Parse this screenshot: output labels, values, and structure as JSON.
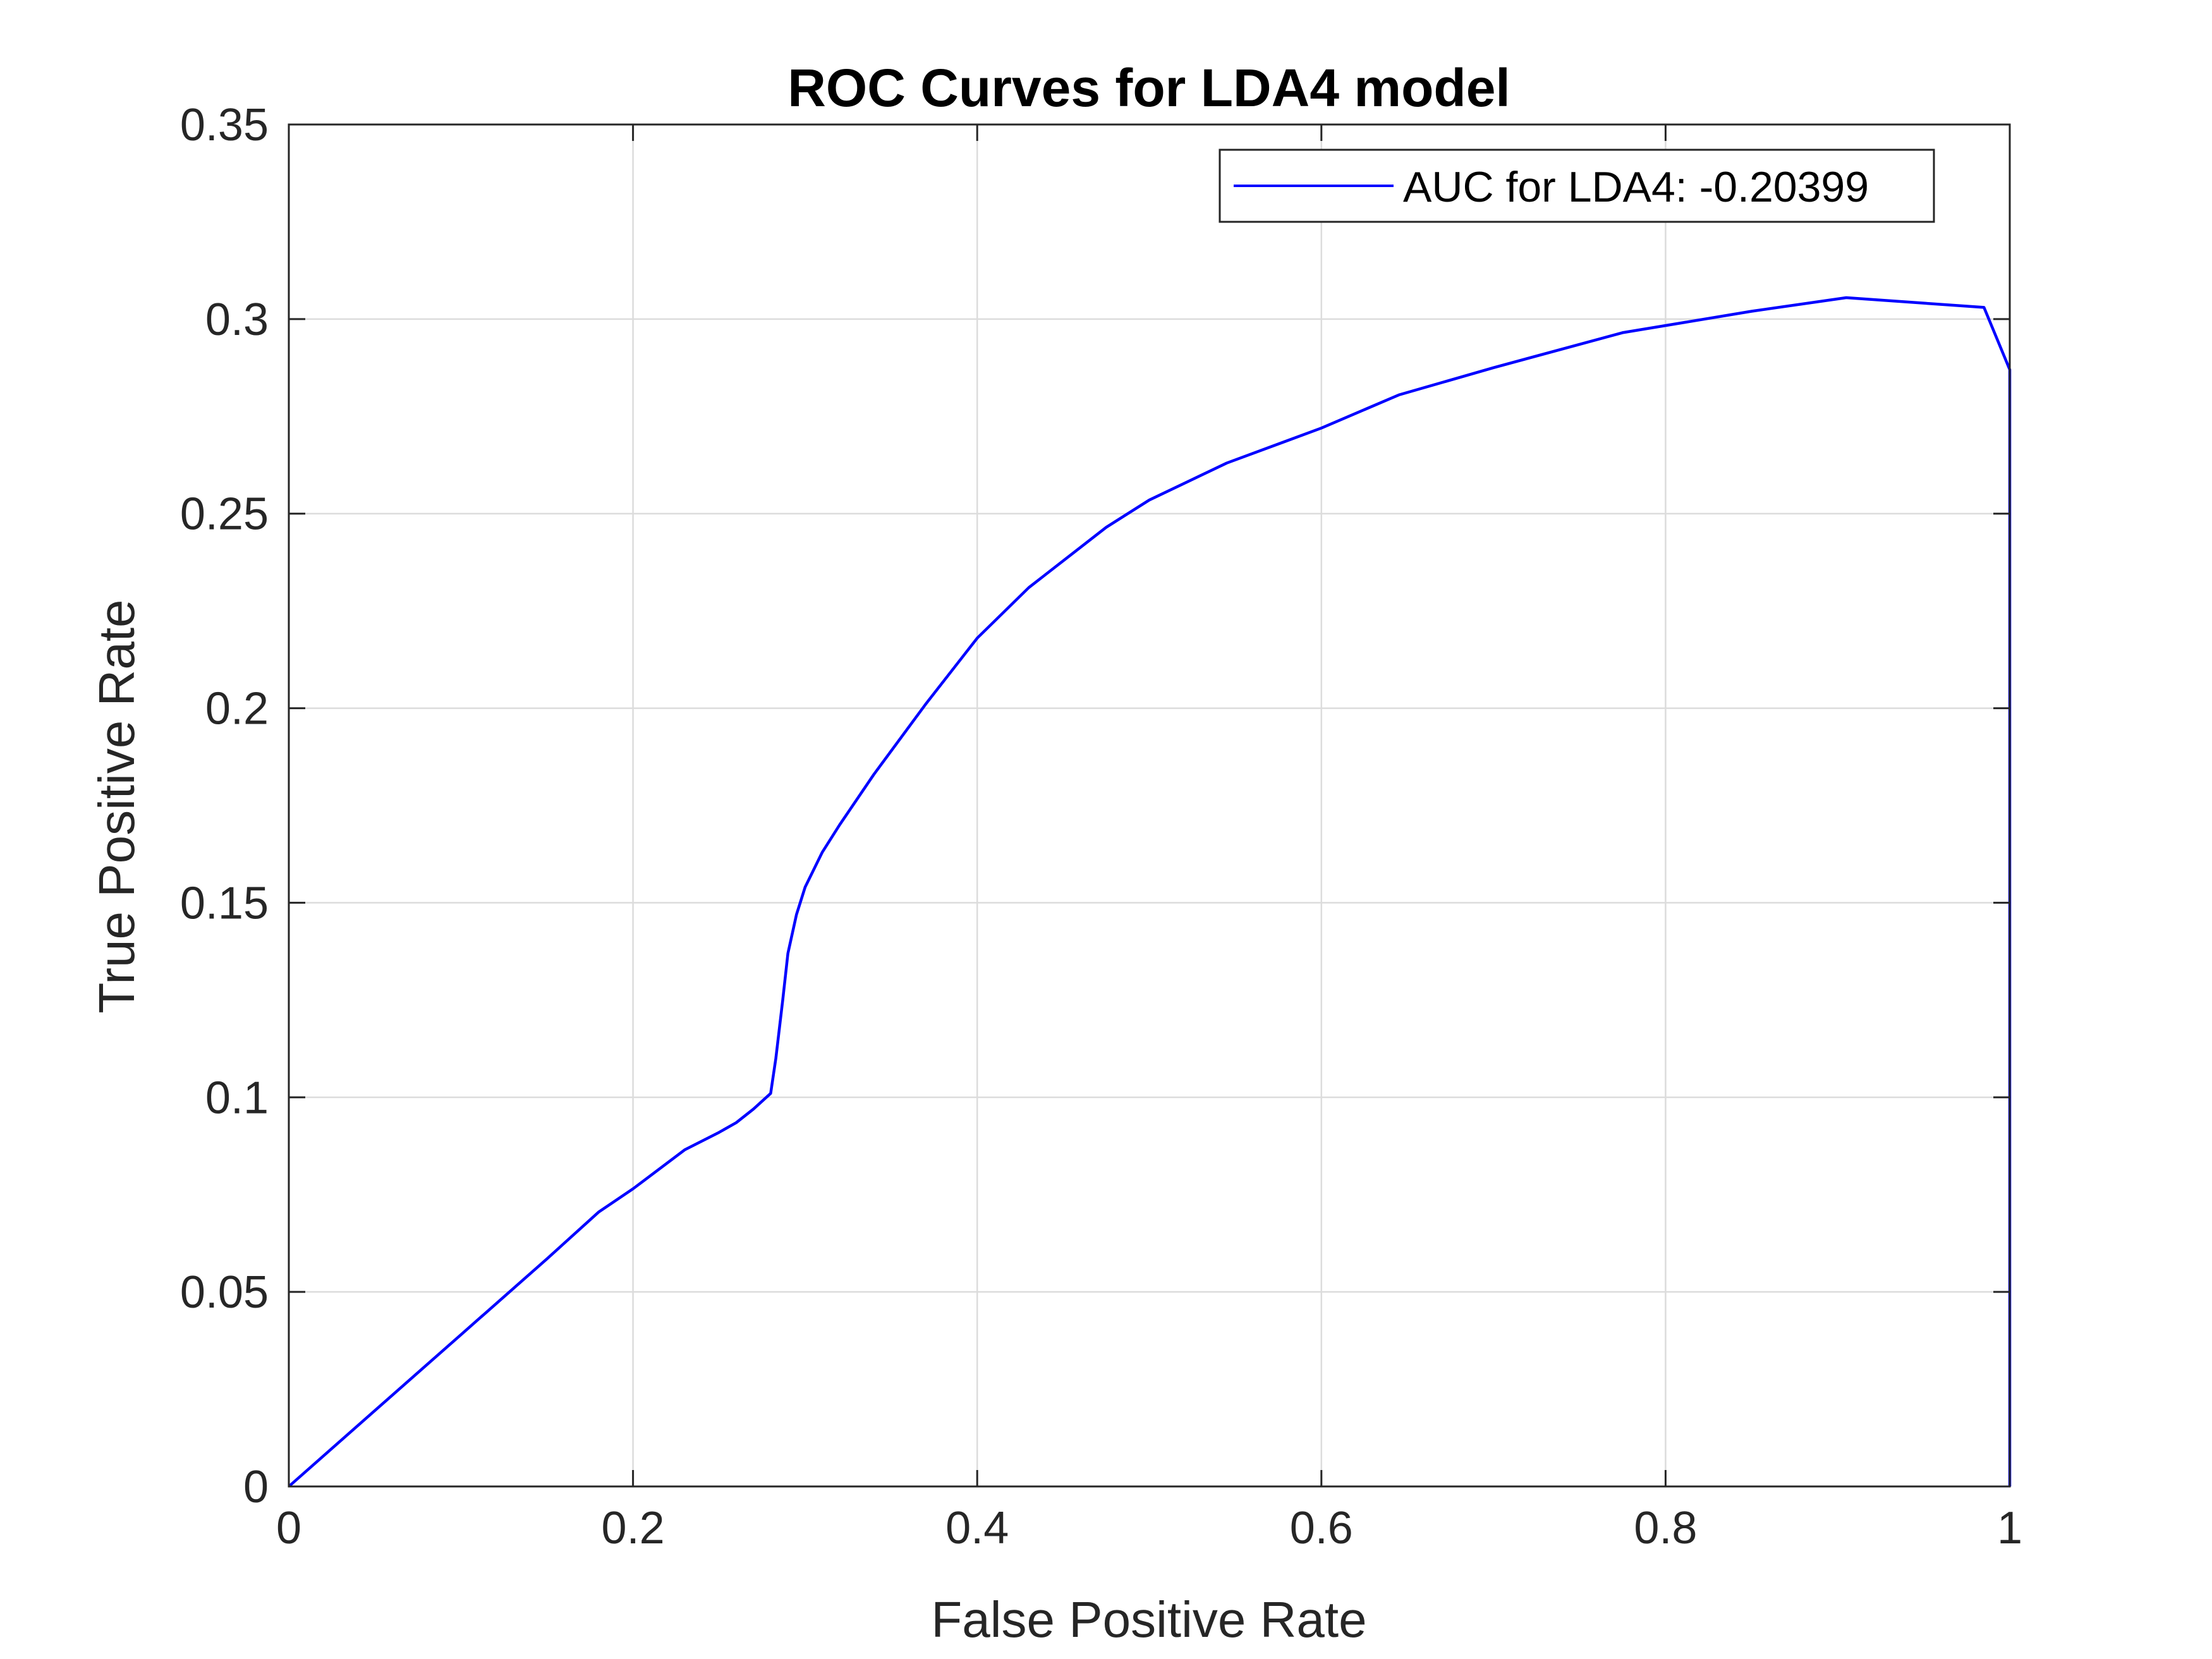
{
  "chart_data": {
    "type": "line",
    "title": "ROC Curves for LDA4 model",
    "xlabel": "False Positive Rate",
    "ylabel": "True Positive Rate",
    "xlim": [
      0,
      1
    ],
    "ylim": [
      0,
      0.35
    ],
    "x_ticks": [
      0,
      0.2,
      0.4,
      0.6,
      0.8,
      1
    ],
    "x_tick_labels": [
      "0",
      "0.2",
      "0.4",
      "0.6",
      "0.8",
      "1"
    ],
    "y_ticks": [
      0,
      0.05,
      0.1,
      0.15,
      0.2,
      0.25,
      0.3,
      0.35
    ],
    "y_tick_labels": [
      "0",
      "0.05",
      "0.1",
      "0.15",
      "0.2",
      "0.25",
      "0.3",
      "0.35"
    ],
    "grid": true,
    "legend_position": "top-right",
    "series": [
      {
        "name": "AUC for LDA4: -0.20399",
        "color": "#0000ff",
        "points": [
          [
            0,
            0
          ],
          [
            0.05,
            0.0195
          ],
          [
            0.1,
            0.039
          ],
          [
            0.15,
            0.0585
          ],
          [
            0.18,
            0.0705
          ],
          [
            0.2,
            0.0765
          ],
          [
            0.23,
            0.0865
          ],
          [
            0.25,
            0.091
          ],
          [
            0.26,
            0.0935
          ],
          [
            0.27,
            0.097
          ],
          [
            0.28,
            0.101
          ],
          [
            0.283,
            0.11
          ],
          [
            0.287,
            0.125
          ],
          [
            0.29,
            0.137
          ],
          [
            0.295,
            0.147
          ],
          [
            0.3,
            0.154
          ],
          [
            0.31,
            0.163
          ],
          [
            0.32,
            0.17
          ],
          [
            0.34,
            0.183
          ],
          [
            0.37,
            0.201
          ],
          [
            0.4,
            0.218
          ],
          [
            0.43,
            0.231
          ],
          [
            0.475,
            0.2465
          ],
          [
            0.5,
            0.2535
          ],
          [
            0.545,
            0.263
          ],
          [
            0.6,
            0.272
          ],
          [
            0.645,
            0.2805
          ],
          [
            0.7,
            0.2875
          ],
          [
            0.775,
            0.2965
          ],
          [
            0.85,
            0.302
          ],
          [
            0.905,
            0.3055
          ],
          [
            0.985,
            0.303
          ],
          [
            1,
            0.287
          ],
          [
            1,
            0
          ]
        ]
      }
    ]
  },
  "colors": {
    "axis": "#262626",
    "grid": "#dcdcdc",
    "series_line": "#0000ff",
    "background": "#ffffff"
  }
}
